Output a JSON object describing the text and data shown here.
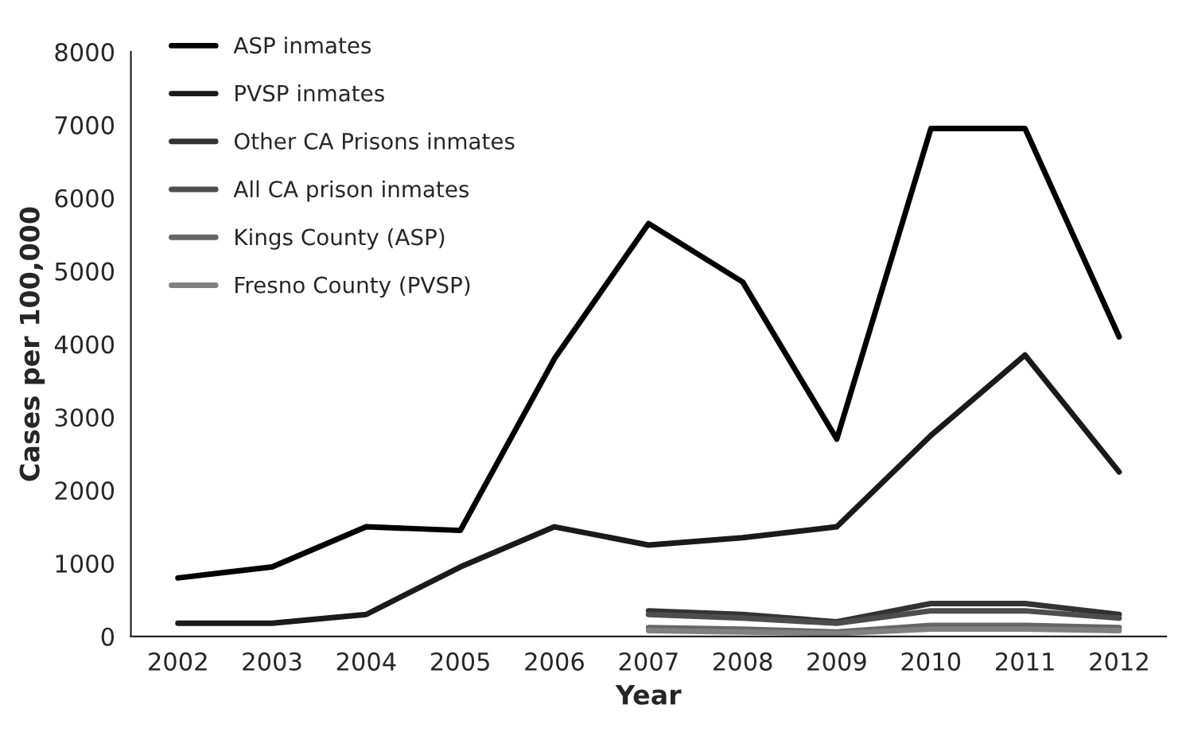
{
  "chart_data": {
    "type": "line",
    "xlabel": "Year",
    "ylabel": "Cases per 100,000",
    "categories": [
      "2002",
      "2003",
      "2004",
      "2005",
      "2006",
      "2007",
      "2008",
      "2009",
      "2010",
      "2011",
      "2012"
    ],
    "ylim": [
      0,
      8000
    ],
    "yticks": [
      0,
      1000,
      2000,
      3000,
      4000,
      5000,
      6000,
      7000,
      8000
    ],
    "grid": false,
    "legend": "top left",
    "marker": "none",
    "line_style": "solid",
    "series": [
      {
        "name": "ASP inmates",
        "color": "#000000",
        "values": [
          800,
          950,
          1500,
          1450,
          3800,
          5650,
          4850,
          2700,
          6950,
          6950,
          4100
        ]
      },
      {
        "name": "PVSP inmates",
        "color": "#1a1a1a",
        "values": [
          180,
          180,
          300,
          950,
          1500,
          1250,
          1350,
          1500,
          2750,
          3850,
          2250
        ]
      },
      {
        "name": "Other CA Prisons inmates",
        "color": "#333333",
        "values": [
          null,
          null,
          null,
          null,
          null,
          350,
          300,
          200,
          450,
          450,
          300
        ]
      },
      {
        "name": "All CA prison inmates",
        "color": "#4d4d4d",
        "values": [
          null,
          null,
          null,
          null,
          null,
          300,
          250,
          180,
          350,
          350,
          250
        ]
      },
      {
        "name": "Kings County (ASP)",
        "color": "#666666",
        "values": [
          null,
          null,
          null,
          null,
          null,
          120,
          100,
          60,
          150,
          150,
          120
        ]
      },
      {
        "name": "Fresno County (PVSP)",
        "color": "#808080",
        "values": [
          null,
          null,
          null,
          null,
          null,
          80,
          60,
          40,
          100,
          100,
          80
        ]
      }
    ]
  }
}
